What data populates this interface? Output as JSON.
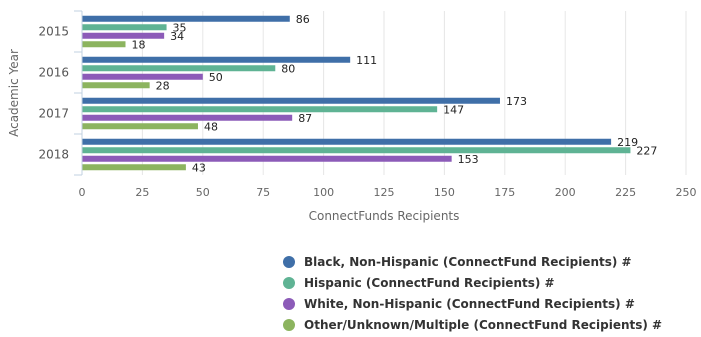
{
  "chart_data": {
    "type": "bar",
    "orientation": "horizontal",
    "categories": [
      "2015",
      "2016",
      "2017",
      "2018"
    ],
    "series": [
      {
        "name": "Black, Non-Hispanic (ConnectFund Recipients) #",
        "color": "#3f6fa8",
        "values": [
          86,
          111,
          173,
          219
        ]
      },
      {
        "name": "Hispanic (ConnectFund Recipients) #",
        "color": "#5fb394",
        "values": [
          35,
          80,
          147,
          227
        ]
      },
      {
        "name": "White, Non-Hispanic (ConnectFund Recipients) #",
        "color": "#8c5bb8",
        "values": [
          34,
          50,
          87,
          153
        ]
      },
      {
        "name": "Other/Unknown/Multiple (ConnectFund Recipients) #",
        "color": "#8cb45f",
        "values": [
          18,
          28,
          48,
          43
        ]
      }
    ],
    "xlabel": "ConnectFunds Recipients",
    "ylabel": "Academic Year",
    "xlim": [
      0,
      250
    ],
    "xticks": [
      0,
      25,
      50,
      75,
      100,
      125,
      150,
      175,
      200,
      225,
      250
    ],
    "grid": true,
    "legend_position": "bottom-right"
  }
}
